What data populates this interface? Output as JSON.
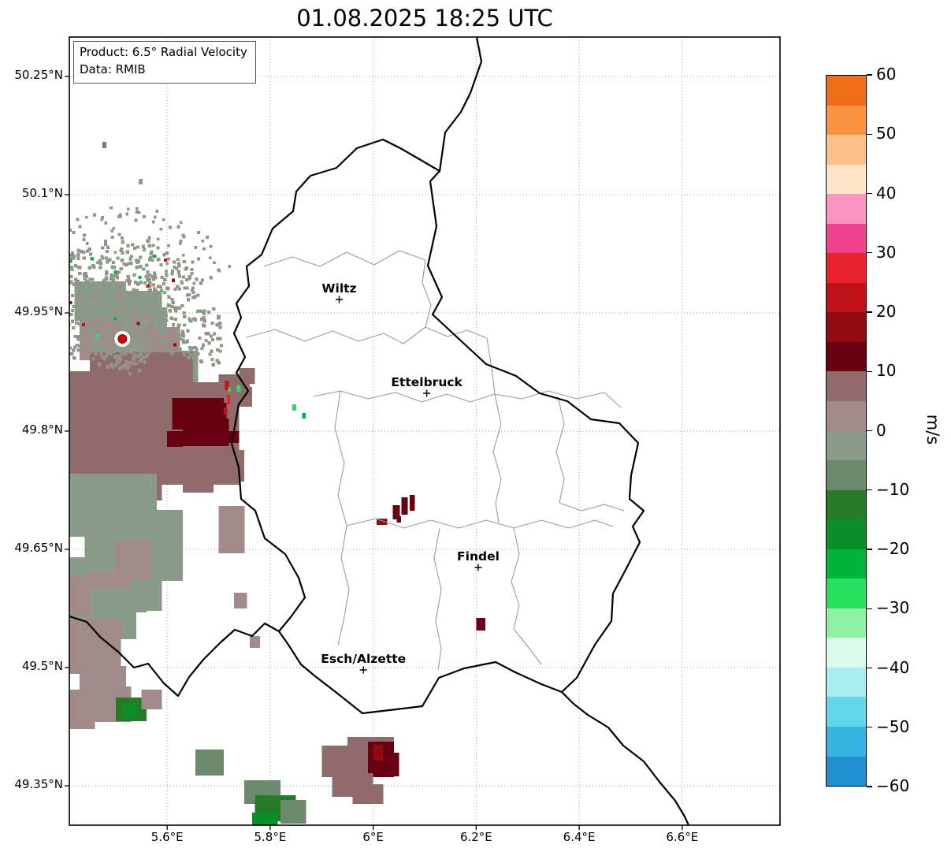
{
  "title": "01.08.2025 18:25 UTC",
  "info_box": {
    "product": "Product: 6.5° Radial Velocity",
    "data": "Data: RMIB"
  },
  "colorbar": {
    "label": "m/s",
    "vmin": -60,
    "vmax": 60,
    "ticks": [
      {
        "v": 60,
        "label": "60"
      },
      {
        "v": 50,
        "label": "50"
      },
      {
        "v": 40,
        "label": "40"
      },
      {
        "v": 30,
        "label": "30"
      },
      {
        "v": 20,
        "label": "20"
      },
      {
        "v": 10,
        "label": "10"
      },
      {
        "v": 0,
        "label": "0"
      },
      {
        "v": -10,
        "label": "−10"
      },
      {
        "v": -20,
        "label": "−20"
      },
      {
        "v": -30,
        "label": "−30"
      },
      {
        "v": -40,
        "label": "−40"
      },
      {
        "v": -50,
        "label": "−50"
      },
      {
        "v": -60,
        "label": "−60"
      }
    ]
  },
  "chart_data": {
    "type": "heatmap",
    "title": "01.08.2025 18:25 UTC",
    "product": "6.5° Radial Velocity",
    "source": "RMIB",
    "units": "m/s",
    "extent": {
      "lon_min": 5.41,
      "lon_max": 6.79,
      "lat_min": 49.3,
      "lat_max": 50.3
    },
    "lat_ticks": [
      {
        "label": "50.25°N",
        "lat": 50.25
      },
      {
        "label": "50.1°N",
        "lat": 50.1
      },
      {
        "label": "49.95°N",
        "lat": 49.95
      },
      {
        "label": "49.8°N",
        "lat": 49.8
      },
      {
        "label": "49.65°N",
        "lat": 49.65
      },
      {
        "label": "49.5°N",
        "lat": 49.5
      },
      {
        "label": "49.35°N",
        "lat": 49.35
      }
    ],
    "lon_ticks": [
      {
        "label": "5.6°E",
        "lon": 5.6
      },
      {
        "label": "5.8°E",
        "lon": 5.8
      },
      {
        "label": "6°E",
        "lon": 6.0
      },
      {
        "label": "6.2°E",
        "lon": 6.2
      },
      {
        "label": "6.4°E",
        "lon": 6.4
      },
      {
        "label": "6.6°E",
        "lon": 6.6
      }
    ],
    "color_scale": [
      {
        "v0": -60,
        "v1": -55,
        "color": "#1f8fd0"
      },
      {
        "v0": -55,
        "v1": -50,
        "color": "#35b5e2"
      },
      {
        "v0": -50,
        "v1": -45,
        "color": "#62d6ea"
      },
      {
        "v0": -45,
        "v1": -40,
        "color": "#a9ecf2"
      },
      {
        "v0": -40,
        "v1": -35,
        "color": "#dafbea"
      },
      {
        "v0": -35,
        "v1": -30,
        "color": "#8ef2a6"
      },
      {
        "v0": -30,
        "v1": -25,
        "color": "#27e060"
      },
      {
        "v0": -25,
        "v1": -20,
        "color": "#00b33a"
      },
      {
        "v0": -20,
        "v1": -15,
        "color": "#0a8f2a"
      },
      {
        "v0": -15,
        "v1": -10,
        "color": "#267c26"
      },
      {
        "v0": -10,
        "v1": -5,
        "color": "#6b8a6b"
      },
      {
        "v0": -5,
        "v1": 0,
        "color": "#8a9b8a"
      },
      {
        "v0": 0,
        "v1": 5,
        "color": "#a08a8a"
      },
      {
        "v0": 5,
        "v1": 10,
        "color": "#8f6b6b"
      },
      {
        "v0": 10,
        "v1": 15,
        "color": "#670010"
      },
      {
        "v0": 15,
        "v1": 20,
        "color": "#8f0d12"
      },
      {
        "v0": 20,
        "v1": 25,
        "color": "#c01318"
      },
      {
        "v0": 25,
        "v1": 30,
        "color": "#e8232d"
      },
      {
        "v0": 30,
        "v1": 35,
        "color": "#f0418f"
      },
      {
        "v0": 35,
        "v1": 40,
        "color": "#f995c3"
      },
      {
        "v0": 40,
        "v1": 45,
        "color": "#fde3c8"
      },
      {
        "v0": 45,
        "v1": 50,
        "color": "#fdc08a"
      },
      {
        "v0": 50,
        "v1": 55,
        "color": "#fb923f"
      },
      {
        "v0": 55,
        "v1": 60,
        "color": "#ef6c18"
      }
    ],
    "radar_site": {
      "lon": 5.513,
      "lat": 49.917
    },
    "cities": [
      {
        "name": "Wiltz",
        "lon": 5.934,
        "lat": 49.967
      },
      {
        "name": "Ettelbruck",
        "lon": 6.104,
        "lat": 49.848
      },
      {
        "name": "Findel",
        "lon": 6.204,
        "lat": 49.627
      },
      {
        "name": "Esch/Alzette",
        "lon": 5.981,
        "lat": 49.497
      }
    ],
    "velocity_patches": [
      [
        5.42,
        49.99,
        0.1,
        0.05,
        -2
      ],
      [
        5.47,
        49.978,
        0.12,
        0.06,
        -3
      ],
      [
        5.43,
        49.94,
        0.09,
        0.05,
        2
      ],
      [
        5.5,
        49.957,
        0.1,
        0.06,
        -2
      ],
      [
        5.555,
        49.932,
        0.07,
        0.05,
        3
      ],
      [
        5.46,
        49.906,
        0.09,
        0.04,
        -2
      ],
      [
        5.52,
        49.887,
        0.08,
        0.03,
        3
      ],
      [
        5.6,
        49.902,
        0.06,
        0.04,
        -2
      ],
      [
        5.41,
        49.876,
        0.22,
        0.09,
        6
      ],
      [
        5.45,
        49.9,
        0.2,
        0.05,
        5
      ],
      [
        5.52,
        49.862,
        0.22,
        0.13,
        7
      ],
      [
        5.41,
        49.792,
        0.18,
        0.08,
        6
      ],
      [
        5.48,
        49.803,
        0.2,
        0.07,
        7
      ],
      [
        5.6,
        49.833,
        0.12,
        0.1,
        7
      ],
      [
        5.66,
        49.862,
        0.08,
        0.05,
        6
      ],
      [
        5.7,
        49.872,
        0.06,
        0.03,
        6
      ],
      [
        5.73,
        49.856,
        0.035,
        0.025,
        8
      ],
      [
        5.68,
        49.803,
        0.05,
        0.04,
        7
      ],
      [
        5.63,
        49.772,
        0.06,
        0.05,
        6
      ],
      [
        5.695,
        49.776,
        0.055,
        0.04,
        5
      ],
      [
        5.7,
        49.705,
        0.05,
        0.06,
        4
      ],
      [
        5.74,
        49.88,
        0.03,
        0.02,
        5
      ],
      [
        5.61,
        49.842,
        0.1,
        0.04,
        13
      ],
      [
        5.63,
        49.816,
        0.09,
        0.035,
        14
      ],
      [
        5.655,
        49.836,
        0.06,
        0.05,
        12
      ],
      [
        5.72,
        49.8,
        0.02,
        0.015,
        12
      ],
      [
        5.6,
        49.8,
        0.03,
        0.02,
        11
      ],
      [
        5.712,
        49.864,
        0.008,
        0.012,
        22
      ],
      [
        5.716,
        49.846,
        0.006,
        0.012,
        25
      ],
      [
        5.71,
        49.83,
        0.007,
        0.009,
        22
      ],
      [
        5.718,
        49.856,
        0.006,
        0.006,
        -27
      ],
      [
        5.735,
        49.858,
        0.008,
        0.008,
        -28
      ],
      [
        5.41,
        49.746,
        0.17,
        0.08,
        -2
      ],
      [
        5.44,
        49.7,
        0.19,
        0.09,
        -3
      ],
      [
        5.41,
        49.64,
        0.15,
        0.07,
        -2
      ],
      [
        5.47,
        49.632,
        0.12,
        0.06,
        -3
      ],
      [
        5.41,
        49.586,
        0.13,
        0.05,
        -2
      ],
      [
        5.55,
        49.672,
        0.08,
        0.06,
        -2
      ],
      [
        5.5,
        49.662,
        0.07,
        0.05,
        3
      ],
      [
        5.44,
        49.622,
        0.06,
        0.04,
        2
      ],
      [
        5.41,
        49.616,
        0.12,
        0.05,
        2
      ],
      [
        5.45,
        49.6,
        0.08,
        0.04,
        -2
      ],
      [
        5.41,
        49.562,
        0.1,
        0.07,
        3
      ],
      [
        5.43,
        49.502,
        0.09,
        0.06,
        2
      ],
      [
        5.46,
        49.476,
        0.07,
        0.045,
        3
      ],
      [
        5.41,
        49.472,
        0.05,
        0.05,
        2
      ],
      [
        5.5,
        49.462,
        0.06,
        0.03,
        -12
      ],
      [
        5.515,
        49.454,
        0.025,
        0.018,
        -16
      ],
      [
        5.55,
        49.472,
        0.04,
        0.025,
        2
      ],
      [
        5.73,
        49.595,
        0.025,
        0.02,
        4
      ],
      [
        5.76,
        49.54,
        0.02,
        0.015,
        3
      ],
      [
        5.75,
        49.357,
        0.07,
        0.03,
        -8
      ],
      [
        5.77,
        49.338,
        0.08,
        0.033,
        -12
      ],
      [
        5.765,
        49.316,
        0.05,
        0.02,
        -17
      ],
      [
        5.82,
        49.332,
        0.05,
        0.03,
        -9
      ],
      [
        5.655,
        49.396,
        0.055,
        0.033,
        -6
      ],
      [
        5.9,
        49.401,
        0.09,
        0.04,
        5
      ],
      [
        5.95,
        49.412,
        0.09,
        0.05,
        6
      ],
      [
        5.99,
        49.406,
        0.05,
        0.045,
        13
      ],
      [
        6.02,
        49.392,
        0.03,
        0.03,
        12
      ],
      [
        5.92,
        49.366,
        0.08,
        0.03,
        5
      ],
      [
        5.96,
        49.352,
        0.06,
        0.025,
        6
      ],
      [
        6.0,
        49.402,
        0.02,
        0.02,
        16
      ],
      [
        6.055,
        49.716,
        0.012,
        0.022,
        13
      ],
      [
        6.071,
        49.719,
        0.01,
        0.02,
        14
      ],
      [
        6.038,
        49.706,
        0.014,
        0.018,
        13
      ],
      [
        6.007,
        49.689,
        0.02,
        0.008,
        18
      ],
      [
        6.046,
        49.692,
        0.008,
        0.008,
        12
      ],
      [
        6.2,
        49.563,
        0.018,
        0.016,
        13
      ],
      [
        5.843,
        49.834,
        0.008,
        0.008,
        -27
      ],
      [
        5.862,
        49.823,
        0.007,
        0.007,
        -25
      ],
      [
        5.474,
        50.167,
        0.008,
        0.008,
        -8
      ],
      [
        5.545,
        50.12,
        0.007,
        0.007,
        -3
      ]
    ],
    "speckle_field": {
      "seed": 13,
      "center": {
        "lon": 5.513,
        "lat": 49.917
      },
      "groups": [
        {
          "count": 680,
          "r_min": 14,
          "r_max": 128,
          "ang_start": -15,
          "ang_end": 205,
          "ray_step": 3,
          "size": 4.2,
          "velocities": [
            -3,
            -2,
            2,
            3,
            -2,
            -4,
            2,
            -3,
            -2
          ]
        },
        {
          "count": 240,
          "r_min": 7,
          "r_max": 44,
          "ang_start": 0,
          "ang_end": 360,
          "ray_step": 5,
          "size": 4.2,
          "velocities": [
            -3,
            2,
            -2,
            3
          ]
        },
        {
          "count": 120,
          "r_min": 95,
          "r_max": 168,
          "ang_start": 35,
          "ang_end": 150,
          "ray_step": 4,
          "size": 3.8,
          "velocities": [
            -3,
            -2,
            2,
            -4
          ]
        },
        {
          "count": 18,
          "r_min": 20,
          "r_max": 120,
          "ang_start": -15,
          "ang_end": 205,
          "ray_step": 7,
          "size": 4.0,
          "velocities": [
            22,
            -25,
            18,
            -28
          ]
        }
      ]
    },
    "country_border": "M 398,130 L 420,141 L 446,156 L 470,170 L 458,183 L 466,240 L 455,290 L 473,330 L 461,352 L 502,390 L 529,415 L 567,430 L 597,452 L 632,462 L 662,485 L 698,490 L 722,515 L 713,556 L 711,586 L 729,601 L 715,621 L 724,641 L 706,676 L 690,706 L 688,741 L 667,771 L 644,813 L 625,831 L 599,821 L 566,806 L 541,793 L 501,801 L 469,813 L 448,849 L 415,853 L 372,858 L 338,831 L 312,811 L 294,796 L 278,771 L 266,754 L 281,736 L 299,711 L 291,686 L 274,656 L 248,636 L 236,601 L 218,586 L 215,546 L 206,516 L 215,466 L 227,449 L 212,426 L 223,406 L 209,376 L 218,356 L 212,338 L 228,316 L 225,291 L 244,276 L 258,243 L 284,221 L 288,196 L 306,176 L 339,166 L 365,141 Z",
    "neighbor_borders": [
      "M 470,170 L 477,121 L 497,95 L 509,71 L 523,31 L 517,0",
      "M 266,754 L 248,744 L 232,760 L 210,752 L 192,768 L 170,790 L 152,812 L 138,836 L 120,820 L 100,795 L 82,800 L 62,780 L 40,762 L 22,742 L 0,735",
      "M 625,831 L 640,846 L 658,860 L 684,876 L 703,899 L 729,919 L 749,945 L 769,969 L 781,989 L 786,1000"
    ],
    "district_borders": [
      "M 247,291 L 283,279 L 318,291 L 352,273 L 387,289 L 419,271 L 452,283",
      "M 452,283 L 448,312 L 459,340 L 452,368",
      "M 225,381 L 261,371 L 299,386 L 334,373 L 367,386 L 399,376 L 424,389 L 452,368",
      "M 310,456 L 344,449 L 379,459 L 414,451 L 447,463 L 479,453 L 509,463 L 540,453 L 574,459 L 608,449 L 644,459 L 679,451 L 700,470",
      "M 344,449 L 337,496 L 349,541 L 341,581 L 352,620",
      "M 352,620 L 389,611 L 424,623 L 459,613 L 494,623 L 529,613 L 564,623 L 599,613 L 634,623 L 667,613 L 690,621",
      "M 470,623 L 463,661 L 472,701 L 465,741 L 472,776 L 468,803",
      "M 564,623 L 571,656 L 561,691 L 571,721 L 564,751 L 584,776 L 599,796",
      "M 540,453 L 548,491 L 538,526 L 548,561 L 541,591 L 545,616",
      "M 620,456 L 628,491 L 618,526 L 628,561 L 622,591",
      "M 622,591 L 650,601 L 679,593 L 704,601",
      "M 352,620 L 345,661 L 355,701 L 348,741 L 341,771",
      "M 452,368 L 480,380 L 505,372 L 530,382 L 536,420 L 540,453"
    ]
  }
}
